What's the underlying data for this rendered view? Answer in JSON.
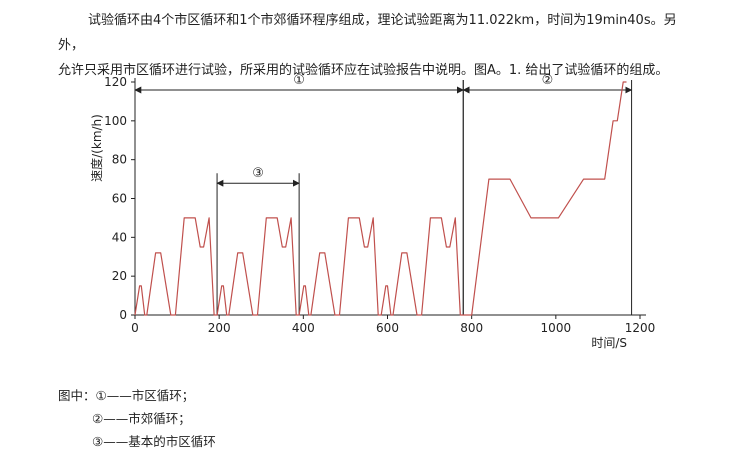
{
  "text": {
    "line1": "试验循环由4个市区循环和1个市郊循环程序组成，理论试验距离为11.022km，时间为19min40s。另外，",
    "line2": "允许只采用市区循环进行试验，所采用的试验循环应在试验报告中说明。图A。1. 给出了试验循环的组成。"
  },
  "legend": {
    "head": "图中：",
    "items": [
      {
        "mark": "①",
        "text": "——市区循环；"
      },
      {
        "mark": "②",
        "text": "——市郊循环；"
      },
      {
        "mark": "③",
        "text": "——基本的市区循环"
      }
    ]
  },
  "chart_data": {
    "type": "line",
    "xlabel": "时间/S",
    "ylabel": "速度/(km/h)",
    "xlim": [
      0,
      1200
    ],
    "ylim": [
      0,
      120
    ],
    "xticks": [
      0,
      200,
      400,
      600,
      800,
      1000,
      1200
    ],
    "yticks": [
      0,
      20,
      40,
      60,
      80,
      100,
      120
    ],
    "grid": false,
    "series_color": "#c0504d",
    "series": [
      {
        "x": [
          0,
          11,
          15,
          23,
          28,
          49,
          61,
          85,
          96,
          117,
          143,
          155,
          163,
          176,
          188,
          195,
          195,
          206,
          210,
          218,
          223,
          244,
          256,
          280,
          291,
          312,
          338,
          350,
          358,
          371,
          383,
          390,
          390,
          401,
          405,
          413,
          418,
          439,
          451,
          475,
          486,
          507,
          533,
          545,
          553,
          566,
          578,
          585,
          585,
          596,
          600,
          608,
          613,
          634,
          646,
          670,
          681,
          702,
          728,
          740,
          748,
          761,
          773,
          780,
          780,
          800,
          841,
          891,
          941,
          1006,
          1066,
          1116,
          1136,
          1146,
          1160,
          1168
        ],
        "y": [
          0,
          15,
          15,
          0,
          0,
          32,
          32,
          0,
          0,
          50,
          50,
          35,
          35,
          50,
          0,
          0,
          0,
          15,
          15,
          0,
          0,
          32,
          32,
          0,
          0,
          50,
          50,
          35,
          35,
          50,
          0,
          0,
          0,
          15,
          15,
          0,
          0,
          32,
          32,
          0,
          0,
          50,
          50,
          35,
          35,
          50,
          0,
          0,
          0,
          15,
          15,
          0,
          0,
          32,
          32,
          0,
          0,
          50,
          50,
          35,
          35,
          50,
          0,
          0,
          0,
          0,
          70,
          70,
          50,
          50,
          70,
          70,
          100,
          100,
          120,
          120
        ]
      }
    ],
    "annotations": [
      {
        "label": "①",
        "x_start": 0,
        "x_end": 780,
        "y": 120
      },
      {
        "label": "②",
        "x_start": 780,
        "x_end": 1180,
        "y": 120
      },
      {
        "label": "③",
        "x_start": 195,
        "x_end": 390,
        "y": 72
      }
    ]
  }
}
